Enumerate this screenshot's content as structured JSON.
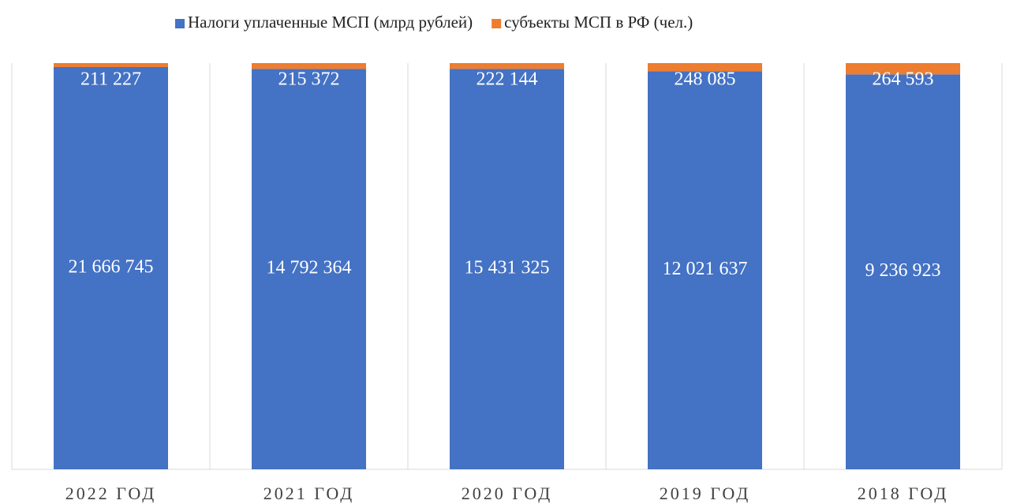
{
  "chart_data": {
    "type": "bar",
    "stacking": "percent",
    "categories": [
      "2022 ГОД",
      "2021 ГОД",
      "2020 ГОД",
      "2019 ГОД",
      "2018 ГОД"
    ],
    "series": [
      {
        "name": "Налоги уплаченные МСП (млрд рублей)",
        "color": "#4472c4",
        "values": [
          21666745,
          14792364,
          15431325,
          12021637,
          9236923
        ],
        "value_labels": [
          "21 666 745",
          "14 792 364",
          "15 431 325",
          "12 021 637",
          "9 236 923"
        ]
      },
      {
        "name": "субъекты МСП в РФ (чел.)",
        "color": "#ed7d31",
        "values": [
          211227,
          215372,
          222144,
          248085,
          264593
        ],
        "value_labels": [
          "211 227",
          "215 372",
          "222 144",
          "248 085",
          "264 593"
        ]
      }
    ],
    "legend": "top"
  }
}
